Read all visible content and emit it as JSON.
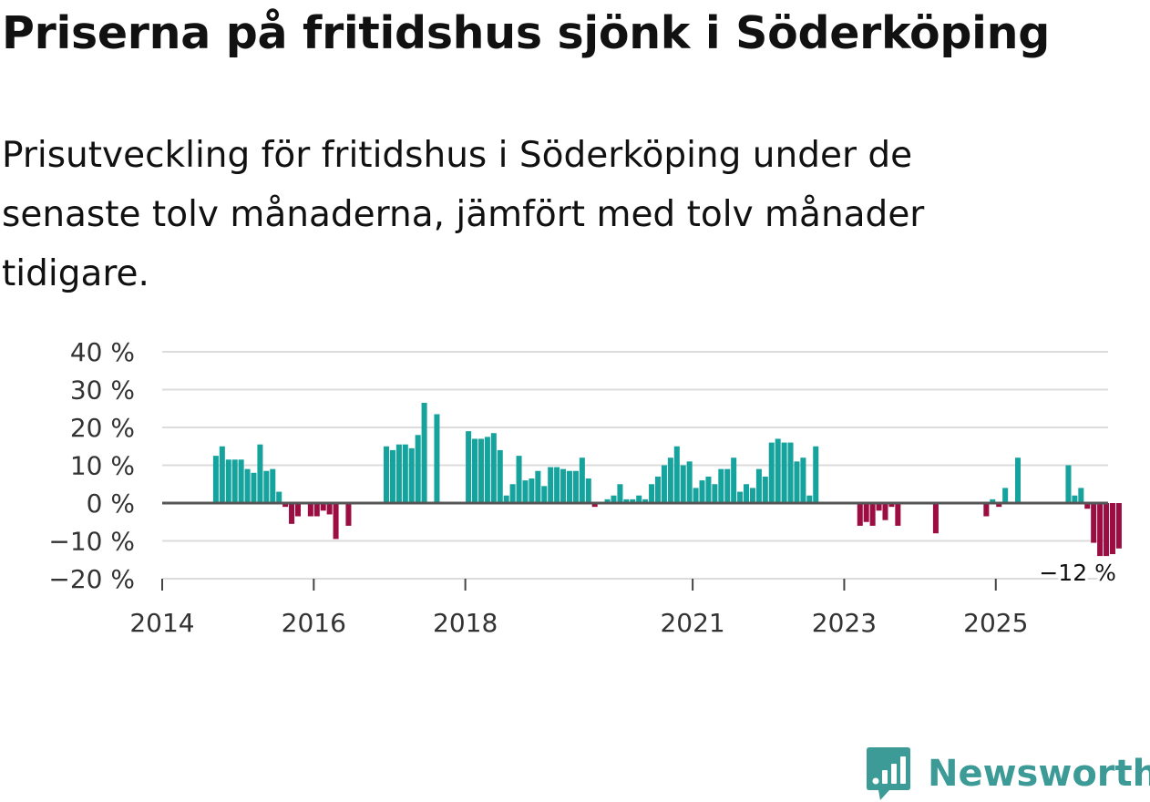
{
  "header": {
    "title": "Priserna på fritidshus sjönk i Söderköping",
    "subtitle": "Prisutveckling för fritidshus i Söderköping under de senaste tolv månaderna, jämfört med tolv månader tidigare."
  },
  "brand": {
    "name": "Newsworthy",
    "color": "#3d9b97"
  },
  "colors": {
    "positive": "#17a39d",
    "negative": "#9c0d42",
    "grid": "#dcdcdc",
    "zero_line": "#555555"
  },
  "chart_data": {
    "type": "bar",
    "title": "Priserna på fritidshus sjönk i Söderköping",
    "subtitle": "Prisutveckling för fritidshus i Söderköping under de senaste tolv månaderna, jämfört med tolv månader tidigare.",
    "xlabel": "",
    "ylabel": "",
    "unit": "%",
    "ylim": [
      -20,
      40
    ],
    "yticks": [
      -20,
      -10,
      0,
      10,
      20,
      30,
      40
    ],
    "ytick_labels": [
      "−20 %",
      "−10 %",
      "0 %",
      "10 %",
      "20 %",
      "30 %",
      "40 %"
    ],
    "xticks": [
      {
        "label": "2014",
        "month_index": 0
      },
      {
        "label": "2016",
        "month_index": 24
      },
      {
        "label": "2018",
        "month_index": 48
      },
      {
        "label": "2021",
        "month_index": 84
      },
      {
        "label": "2023",
        "month_index": 108
      },
      {
        "label": "2025",
        "month_index": 132
      }
    ],
    "x_start": "2014-01",
    "values": [
      null,
      null,
      null,
      null,
      null,
      null,
      null,
      null,
      12.5,
      15,
      11.5,
      11.5,
      11.5,
      9,
      8,
      15.5,
      8.5,
      9,
      3,
      -1,
      -5.5,
      -3.5,
      null,
      -3.5,
      -3.5,
      -2,
      -3,
      -9.5,
      null,
      -6,
      null,
      null,
      null,
      null,
      null,
      15,
      14,
      15.5,
      15.5,
      14.5,
      18,
      26.5,
      null,
      23.5,
      null,
      null,
      null,
      null,
      19,
      17,
      17,
      17.5,
      18.5,
      14,
      2,
      5,
      12.5,
      6,
      6.5,
      8.5,
      4.5,
      9.5,
      9.5,
      9,
      8.5,
      8.5,
      12,
      6.5,
      -1,
      null,
      1,
      2,
      5,
      1,
      1,
      2,
      1,
      5,
      7,
      10,
      12,
      15,
      10,
      11,
      4,
      6,
      7,
      5,
      9,
      9,
      12,
      3,
      5,
      4,
      9,
      7,
      16,
      17,
      16,
      16,
      11,
      12,
      2,
      15,
      null,
      null,
      null,
      null,
      null,
      null,
      -6,
      -5,
      -6,
      -2,
      -4.5,
      -1,
      -6,
      null,
      null,
      null,
      null,
      null,
      -8,
      null,
      null,
      null,
      null,
      null,
      null,
      null,
      -3.5,
      1,
      -1,
      4,
      null,
      12,
      null,
      null,
      null,
      null,
      null,
      null,
      null,
      10,
      2,
      4,
      -1.5,
      -10.5,
      -14,
      -14,
      -13.5,
      -12
    ],
    "annotations": [
      {
        "label": "−12 %",
        "month_index": 141,
        "value": -12
      }
    ]
  }
}
